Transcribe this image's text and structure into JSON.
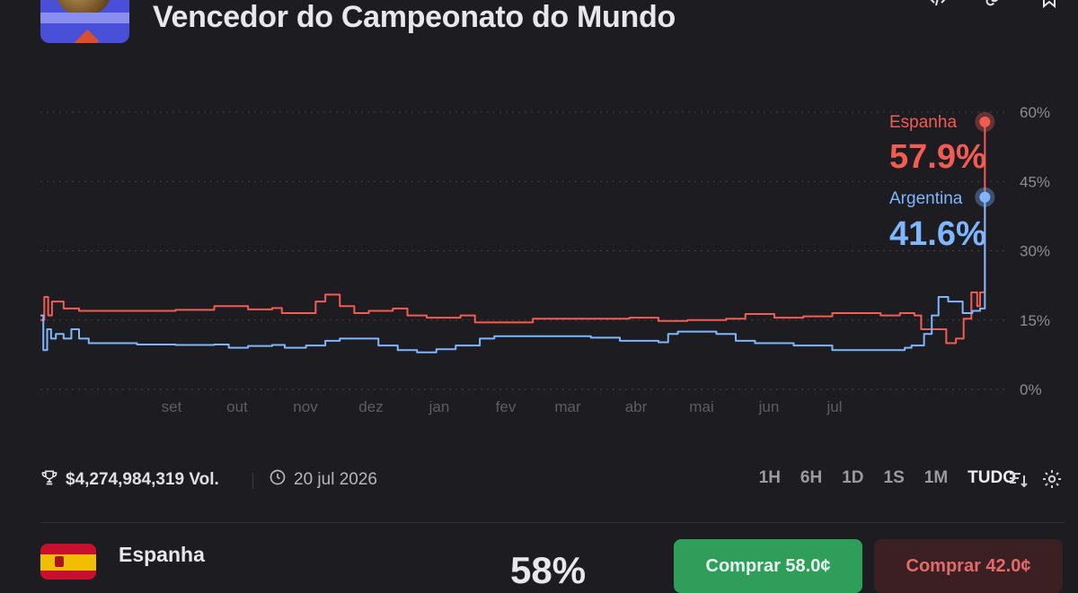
{
  "header": {
    "title": "Vencedor do Campeonato do Mundo"
  },
  "footer": {
    "volume": "$4,274,984,319 Vol.",
    "date": "20 jul 2026",
    "ranges": [
      "1H",
      "6H",
      "1D",
      "1S",
      "1M",
      "TUDO"
    ],
    "active_range": "TUDO"
  },
  "outcome": {
    "name": "Espanha",
    "pct": "58%",
    "yes_label": "Comprar 58.0¢",
    "no_label": "Comprar 42.0¢"
  },
  "colors": {
    "espanha": "#f25c54",
    "argentina": "#7fb6ff",
    "background": "#1d1d21"
  },
  "icons": [
    "code-icon",
    "link-icon",
    "bookmark-icon",
    "trophy-icon",
    "clock-icon",
    "sort-icon",
    "gear-icon"
  ],
  "chart_data": {
    "type": "line",
    "x_ticks": [
      "set",
      "out",
      "nov",
      "dez",
      "jan",
      "fev",
      "mar",
      "abr",
      "mai",
      "jun",
      "jul"
    ],
    "y_ticks": [
      "60%",
      "45%",
      "30%",
      "15%",
      "0%"
    ],
    "ylim": [
      0,
      60
    ],
    "grid": true,
    "series": [
      {
        "name": "Espanha",
        "current": "57.9%",
        "points": [
          [
            0,
            15
          ],
          [
            0.4,
            20
          ],
          [
            0.8,
            16
          ],
          [
            1.2,
            19
          ],
          [
            2.4,
            17.5
          ],
          [
            4,
            17
          ],
          [
            10,
            17
          ],
          [
            14,
            17.2
          ],
          [
            18,
            18
          ],
          [
            21.5,
            17.3
          ],
          [
            24,
            17.6
          ],
          [
            25,
            16.5
          ],
          [
            26.5,
            16.5
          ],
          [
            28.5,
            19
          ],
          [
            29.5,
            20.5
          ],
          [
            31,
            18
          ],
          [
            32.5,
            16.5
          ],
          [
            34,
            17
          ],
          [
            36.5,
            17.5
          ],
          [
            38,
            16
          ],
          [
            40,
            15.5
          ],
          [
            42,
            15.5
          ],
          [
            43.5,
            16
          ],
          [
            45,
            14.5
          ],
          [
            50,
            14.5
          ],
          [
            51,
            15.3
          ],
          [
            58,
            15.3
          ],
          [
            61,
            15.5
          ],
          [
            64,
            14.8
          ],
          [
            67,
            15
          ],
          [
            71,
            15.3
          ],
          [
            73,
            16.3
          ],
          [
            76,
            15.5
          ],
          [
            79,
            15.8
          ],
          [
            82,
            16.5
          ],
          [
            84.5,
            16.5
          ],
          [
            87,
            16
          ],
          [
            89,
            16.5
          ],
          [
            90.5,
            16
          ],
          [
            91.2,
            13
          ],
          [
            92.5,
            13
          ],
          [
            93.8,
            10
          ],
          [
            94.8,
            11
          ],
          [
            95.6,
            15.3
          ],
          [
            96.4,
            21
          ],
          [
            97,
            18
          ],
          [
            97.3,
            21
          ],
          [
            97.8,
            57.9
          ]
        ]
      },
      {
        "name": "Argentina",
        "current": "41.6%",
        "points": [
          [
            0,
            16
          ],
          [
            0.3,
            8.5
          ],
          [
            0.7,
            13
          ],
          [
            1.1,
            11
          ],
          [
            1.6,
            12
          ],
          [
            2.4,
            11
          ],
          [
            3.2,
            13
          ],
          [
            4,
            11
          ],
          [
            5,
            10
          ],
          [
            6.5,
            10
          ],
          [
            10,
            9.7
          ],
          [
            14,
            9.6
          ],
          [
            18,
            9.7
          ],
          [
            19.5,
            9
          ],
          [
            21.5,
            9.4
          ],
          [
            24,
            9.6
          ],
          [
            25.3,
            9
          ],
          [
            27.5,
            9.5
          ],
          [
            29.5,
            10.5
          ],
          [
            31,
            11
          ],
          [
            33.5,
            11
          ],
          [
            35,
            9.5
          ],
          [
            37,
            8.5
          ],
          [
            39,
            8
          ],
          [
            41,
            8.7
          ],
          [
            43,
            9.5
          ],
          [
            44,
            9.5
          ],
          [
            45.5,
            11
          ],
          [
            47,
            11.5
          ],
          [
            53,
            11.5
          ],
          [
            57,
            11.2
          ],
          [
            60,
            10.5
          ],
          [
            64,
            10.2
          ],
          [
            65,
            12
          ],
          [
            66,
            12.5
          ],
          [
            70,
            12
          ],
          [
            72,
            10.5
          ],
          [
            74,
            10
          ],
          [
            78,
            9.5
          ],
          [
            82,
            8.5
          ],
          [
            86,
            8.5
          ],
          [
            88,
            8.5
          ],
          [
            89.5,
            9
          ],
          [
            90.2,
            9.5
          ],
          [
            91.5,
            12
          ],
          [
            92.3,
            16
          ],
          [
            93,
            20
          ],
          [
            94,
            19
          ],
          [
            95.5,
            16.5
          ],
          [
            96.5,
            17
          ],
          [
            97.3,
            17.5
          ],
          [
            97.8,
            41.6
          ]
        ]
      }
    ]
  }
}
